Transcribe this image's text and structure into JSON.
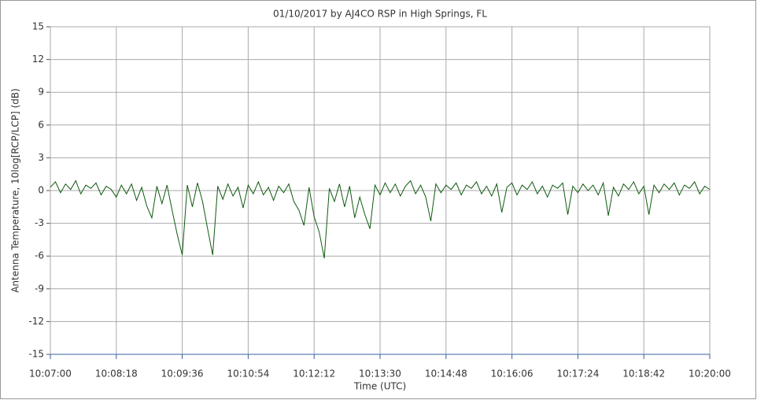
{
  "chart_data": {
    "type": "line",
    "title": "01/10/2017  by  AJ4CO RSP  in  High Springs, FL",
    "x_label": "Time (UTC)",
    "y_label": "Antenna Temperature, 10log[RCP/LCP] (dB)",
    "color": "#0f5a0f",
    "grid": true,
    "xlim": [
      36420,
      37200
    ],
    "ylim": [
      -15,
      15
    ],
    "yticks": [
      -15,
      -12,
      -9,
      -6,
      -3,
      0,
      3,
      6,
      9,
      12,
      15
    ],
    "xticks": [
      {
        "value": 36420,
        "label": "10:07:00"
      },
      {
        "value": 36498,
        "label": "10:08:18"
      },
      {
        "value": 36576,
        "label": "10:09:36"
      },
      {
        "value": 36654,
        "label": "10:10:54"
      },
      {
        "value": 36732,
        "label": "10:12:12"
      },
      {
        "value": 36810,
        "label": "10:13:30"
      },
      {
        "value": 36888,
        "label": "10:14:48"
      },
      {
        "value": 36966,
        "label": "10:16:06"
      },
      {
        "value": 37044,
        "label": "10:17:24"
      },
      {
        "value": 37122,
        "label": "10:18:42"
      },
      {
        "value": 37200,
        "label": "10:20:00"
      }
    ],
    "x": [
      36420,
      36426,
      36432,
      36438,
      36444,
      36450,
      36456,
      36462,
      36468,
      36474,
      36480,
      36486,
      36492,
      36498,
      36504,
      36510,
      36516,
      36522,
      36528,
      36534,
      36540,
      36546,
      36552,
      36558,
      36564,
      36570,
      36576,
      36582,
      36588,
      36594,
      36600,
      36606,
      36612,
      36618,
      36624,
      36630,
      36636,
      36642,
      36648,
      36654,
      36660,
      36666,
      36672,
      36678,
      36684,
      36690,
      36696,
      36702,
      36708,
      36714,
      36720,
      36726,
      36732,
      36738,
      36744,
      36750,
      36756,
      36762,
      36768,
      36774,
      36780,
      36786,
      36792,
      36798,
      36804,
      36810,
      36816,
      36822,
      36828,
      36834,
      36840,
      36846,
      36852,
      36858,
      36864,
      36870,
      36876,
      36882,
      36888,
      36894,
      36900,
      36906,
      36912,
      36918,
      36924,
      36930,
      36936,
      36942,
      36948,
      36954,
      36960,
      36966,
      36972,
      36978,
      36984,
      36990,
      36996,
      37002,
      37008,
      37014,
      37020,
      37026,
      37032,
      37038,
      37044,
      37050,
      37056,
      37062,
      37068,
      37074,
      37080,
      37086,
      37092,
      37098,
      37104,
      37110,
      37116,
      37122,
      37128,
      37134,
      37140,
      37146,
      37152,
      37158,
      37164,
      37170,
      37176,
      37182,
      37188,
      37194,
      37200
    ],
    "values": [
      0.3,
      0.8,
      -0.2,
      0.6,
      0.1,
      0.9,
      -0.3,
      0.5,
      0.2,
      0.7,
      -0.4,
      0.4,
      0.1,
      -0.6,
      0.5,
      -0.3,
      0.6,
      -0.9,
      0.3,
      -1.4,
      -2.5,
      0.4,
      -1.2,
      0.5,
      -1.8,
      -4.0,
      -5.9,
      0.5,
      -1.5,
      0.7,
      -1.0,
      -3.5,
      -5.9,
      0.4,
      -0.8,
      0.6,
      -0.5,
      0.3,
      -1.6,
      0.5,
      -0.3,
      0.8,
      -0.4,
      0.3,
      -0.9,
      0.4,
      -0.2,
      0.6,
      -1.0,
      -1.8,
      -3.2,
      0.3,
      -2.4,
      -3.8,
      -6.2,
      0.2,
      -1.0,
      0.6,
      -1.5,
      0.4,
      -2.5,
      -0.6,
      -2.2,
      -3.5,
      0.5,
      -0.4,
      0.7,
      -0.2,
      0.6,
      -0.5,
      0.4,
      0.9,
      -0.3,
      0.5,
      -0.6,
      -2.8,
      0.6,
      -0.2,
      0.5,
      0.1,
      0.7,
      -0.4,
      0.5,
      0.2,
      0.8,
      -0.3,
      0.4,
      -0.5,
      0.6,
      -2.0,
      0.3,
      0.7,
      -0.4,
      0.5,
      0.1,
      0.8,
      -0.3,
      0.4,
      -0.6,
      0.5,
      0.2,
      0.7,
      -2.2,
      0.4,
      -0.2,
      0.6,
      0.0,
      0.5,
      -0.4,
      0.7,
      -2.3,
      0.3,
      -0.5,
      0.6,
      0.1,
      0.8,
      -0.3,
      0.4,
      -2.2,
      0.5,
      -0.2,
      0.6,
      0.1,
      0.7,
      -0.4,
      0.5,
      0.2,
      0.8,
      -0.3,
      0.4,
      0.1
    ]
  }
}
